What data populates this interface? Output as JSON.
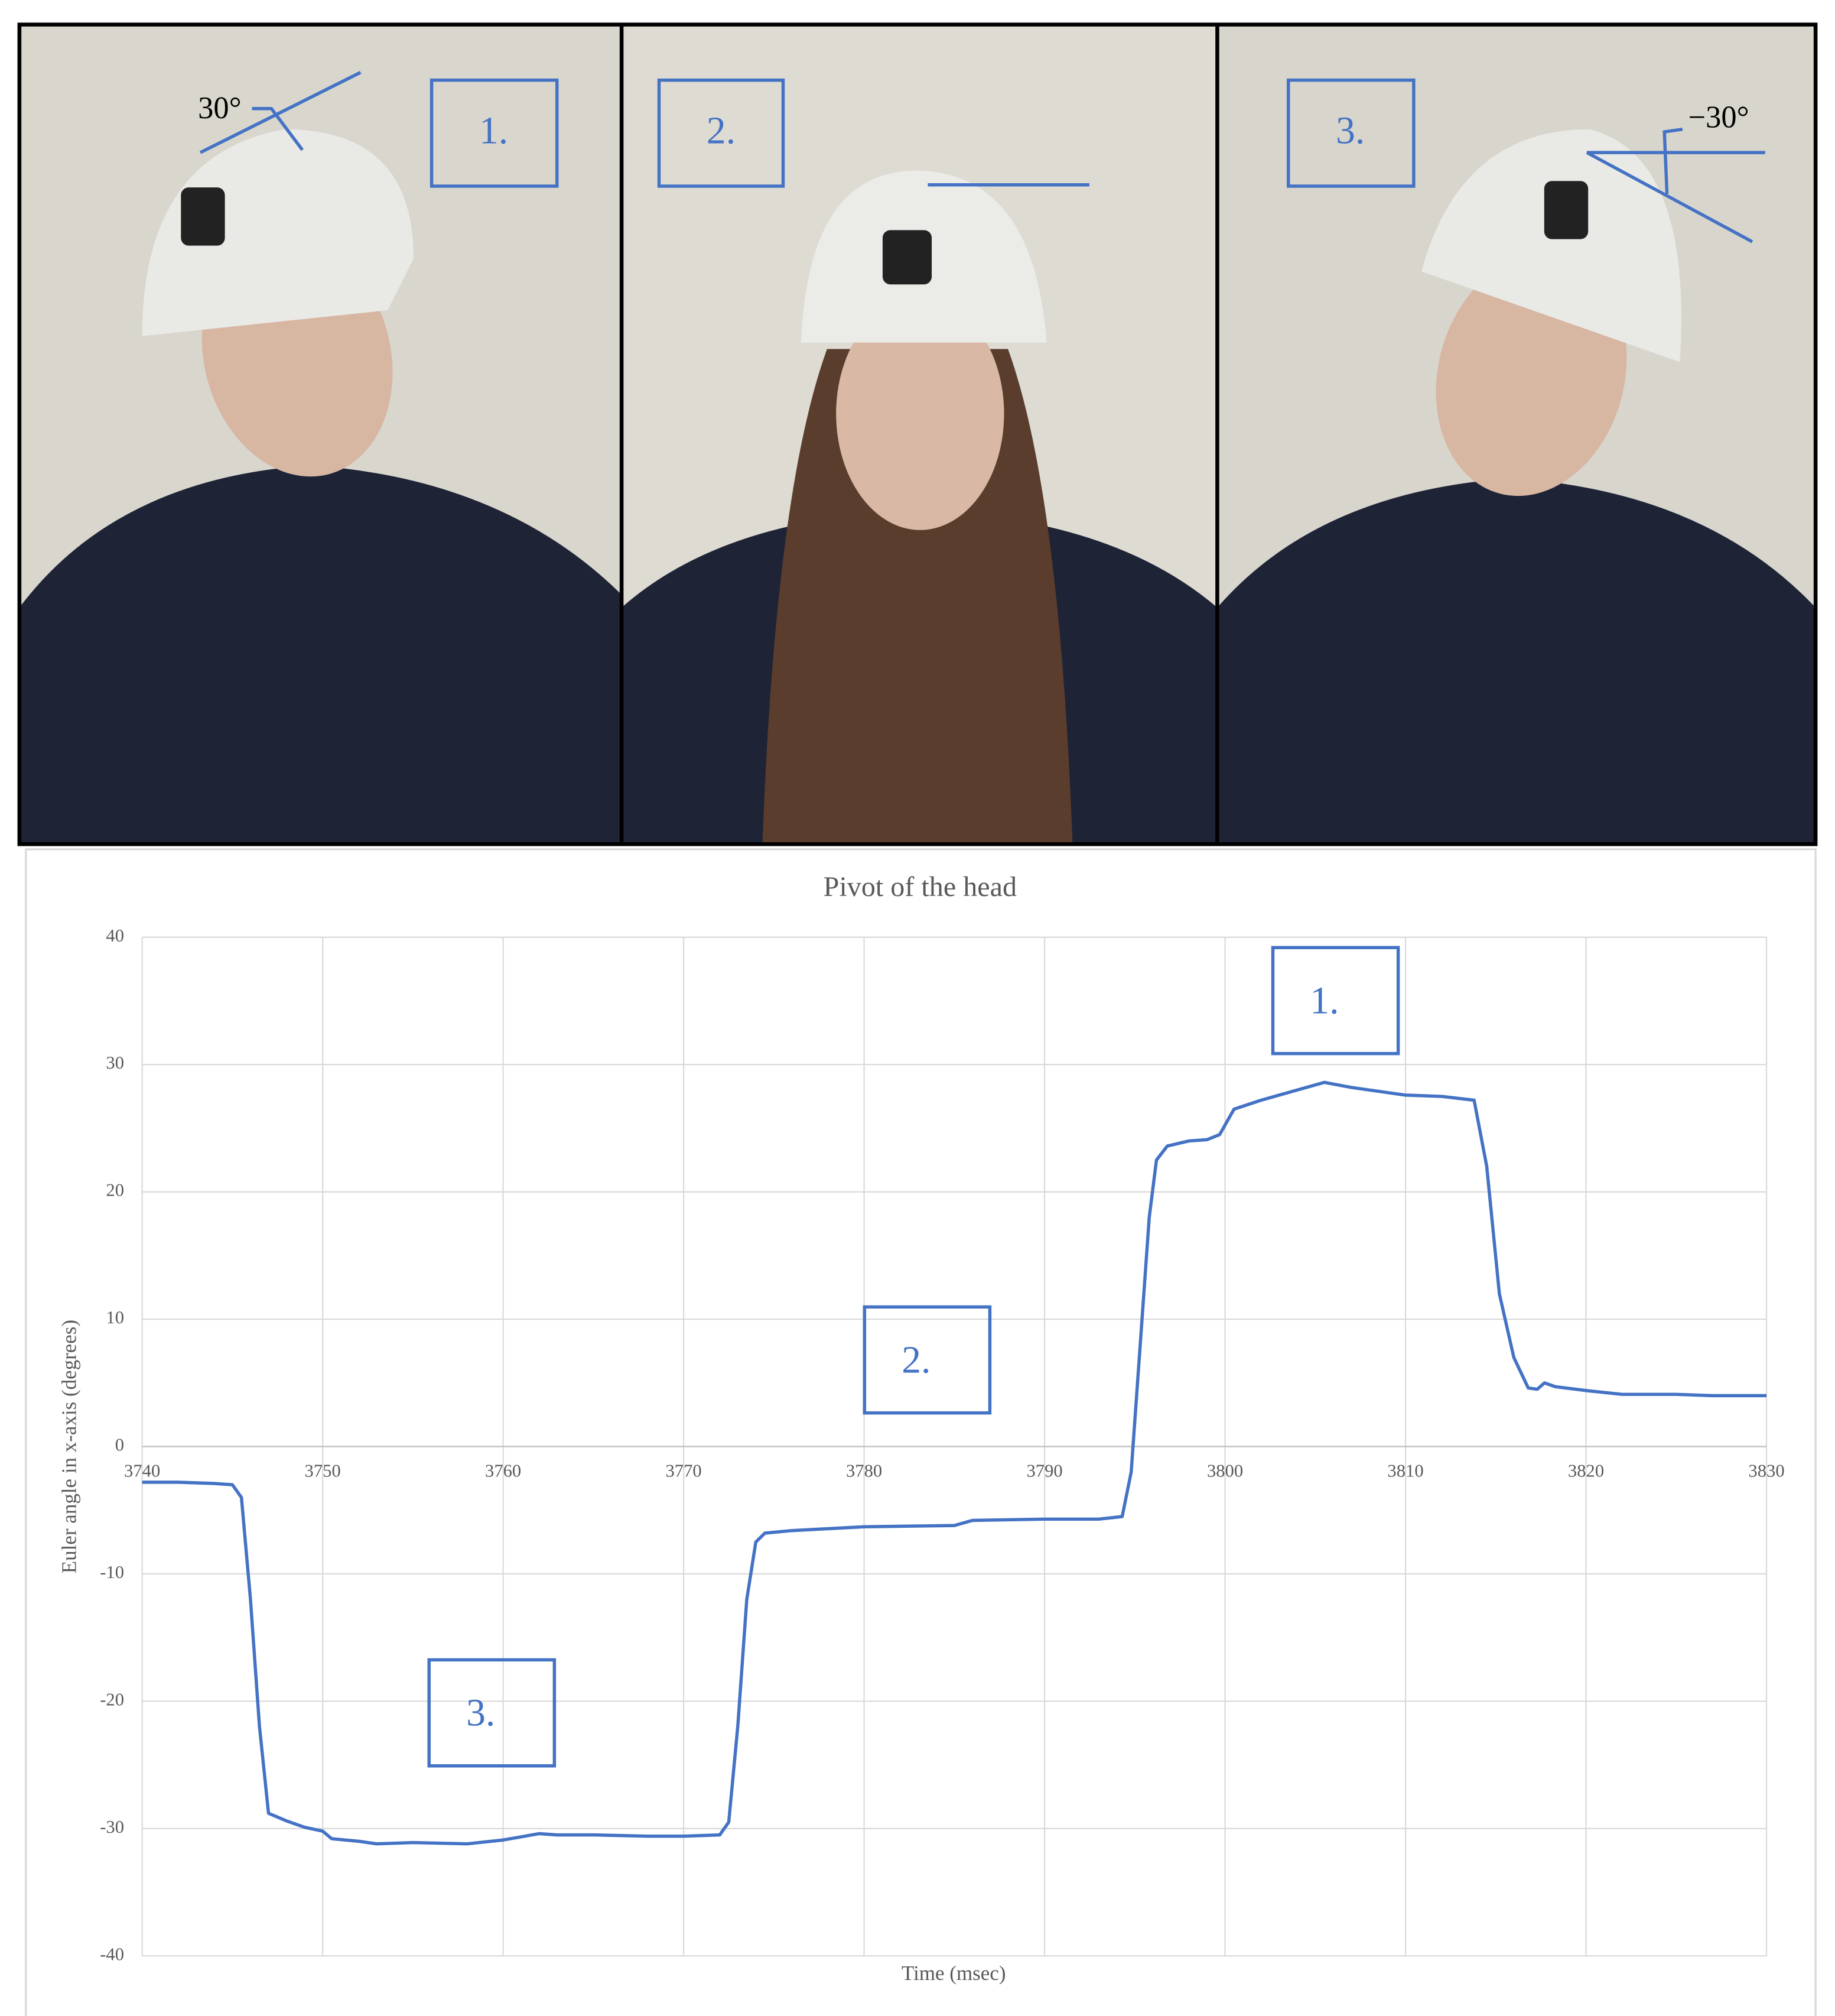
{
  "photos": [
    {
      "label": "1.",
      "angle": "30°"
    },
    {
      "label": "2."
    },
    {
      "label": "3.",
      "angle": "−30°"
    }
  ],
  "chart_data": {
    "type": "line",
    "title": "Pivot of the head",
    "x_label": "Time (msec)",
    "y_label": "Euler angle in x-axis (degrees)",
    "xlim": [
      3740,
      3830
    ],
    "ylim": [
      -40,
      40
    ],
    "xticks": [
      3740,
      3750,
      3760,
      3770,
      3780,
      3790,
      3800,
      3810,
      3820,
      3830
    ],
    "yticks": [
      -40,
      -30,
      -20,
      -10,
      0,
      10,
      20,
      30,
      40
    ],
    "grid": true,
    "annotations": [
      "1.",
      "2.",
      "3."
    ],
    "x": [
      3740,
      3742,
      3744,
      3745,
      3745.5,
      3746,
      3746.5,
      3747,
      3748,
      3749,
      3750,
      3750.5,
      3752,
      3753,
      3755,
      3758,
      3760,
      3762,
      3763,
      3765,
      3768,
      3770,
      3772,
      3772.5,
      3773,
      3773.5,
      3774,
      3774.5,
      3776,
      3780,
      3785,
      3786,
      3790,
      3793,
      3794.3,
      3794.8,
      3795.3,
      3795.8,
      3796.2,
      3796.8,
      3798,
      3799,
      3799.7,
      3800.5,
      3802,
      3804,
      3805.5,
      3807,
      3810,
      3812,
      3813.8,
      3814.5,
      3815.2,
      3816,
      3816.8,
      3817.3,
      3817.7,
      3818.3,
      3820,
      3822,
      3825,
      3827,
      3830
    ],
    "series": [
      {
        "color": "#4472c4",
        "values": [
          -2.8,
          -2.8,
          -2.9,
          -3.0,
          -4,
          -12,
          -22,
          -28.8,
          -29.4,
          -29.9,
          -30.2,
          -30.8,
          -31.0,
          -31.2,
          -31.1,
          -31.2,
          -30.9,
          -30.4,
          -30.5,
          -30.5,
          -30.6,
          -30.6,
          -30.5,
          -29.5,
          -22,
          -12,
          -7.5,
          -6.8,
          -6.6,
          -6.3,
          -6.2,
          -5.8,
          -5.7,
          -5.7,
          -5.5,
          -2,
          8,
          18,
          22.5,
          23.6,
          24.0,
          24.1,
          24.5,
          26.5,
          27.2,
          28.0,
          28.6,
          28.2,
          27.6,
          27.5,
          27.2,
          22,
          12,
          7,
          4.6,
          4.5,
          5.0,
          4.7,
          4.4,
          4.1,
          4.1,
          4.0,
          4.0
        ]
      }
    ]
  }
}
